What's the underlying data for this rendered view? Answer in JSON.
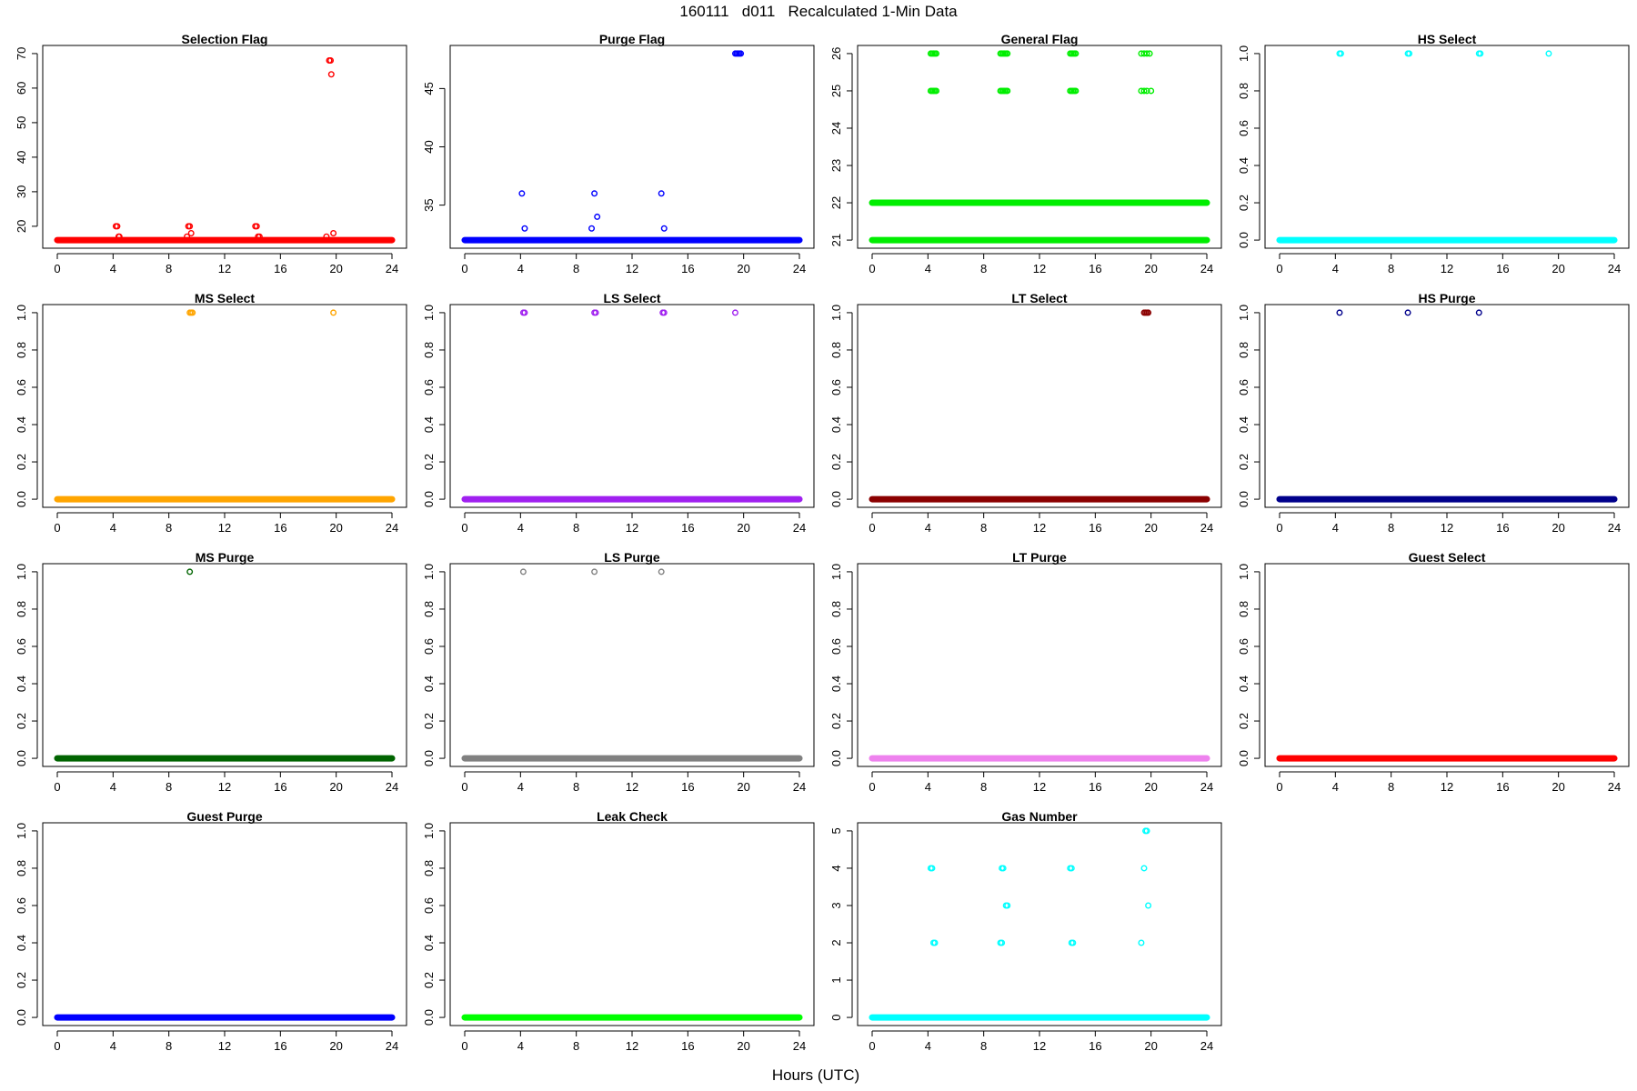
{
  "figure": {
    "title": "160111   d011   Recalculated 1-Min Data",
    "xlabel": "Hours (UTC)"
  },
  "chart_data": [
    {
      "type": "scatter",
      "title": "Selection Flag",
      "color": "#ff0000",
      "xlim": [
        0,
        24
      ],
      "ylim": [
        16,
        70
      ],
      "xticks": [
        0,
        4,
        8,
        12,
        16,
        20,
        24
      ],
      "yticks": [
        20,
        30,
        40,
        50,
        60,
        70
      ],
      "baseline": [
        {
          "y": 16,
          "from": 0,
          "to": 24
        }
      ],
      "points": [
        [
          4.2,
          20
        ],
        [
          4.3,
          20
        ],
        [
          4.4,
          17
        ],
        [
          4.45,
          17
        ],
        [
          9.3,
          17
        ],
        [
          9.4,
          20
        ],
        [
          9.5,
          20
        ],
        [
          9.6,
          18
        ],
        [
          14.2,
          20
        ],
        [
          14.3,
          20
        ],
        [
          14.4,
          17
        ],
        [
          14.5,
          17
        ],
        [
          19.3,
          17
        ],
        [
          19.5,
          68
        ],
        [
          19.6,
          68
        ],
        [
          19.65,
          64
        ],
        [
          19.8,
          18
        ]
      ]
    },
    {
      "type": "scatter",
      "title": "Purge Flag",
      "color": "#0000ff",
      "xlim": [
        0,
        24
      ],
      "ylim": [
        32,
        48
      ],
      "xticks": [
        0,
        4,
        8,
        12,
        16,
        20,
        24
      ],
      "yticks": [
        35,
        40,
        45
      ],
      "baseline": [
        {
          "y": 32,
          "from": 0,
          "to": 24
        }
      ],
      "points": [
        [
          4.1,
          36
        ],
        [
          4.3,
          33
        ],
        [
          9.1,
          33
        ],
        [
          9.3,
          36
        ],
        [
          9.5,
          34
        ],
        [
          14.1,
          36
        ],
        [
          14.3,
          33
        ],
        [
          19.4,
          48
        ],
        [
          19.5,
          48
        ],
        [
          19.6,
          48
        ],
        [
          19.7,
          48
        ],
        [
          19.8,
          48
        ]
      ]
    },
    {
      "type": "scatter",
      "title": "General Flag",
      "color": "#00ee00",
      "xlim": [
        0,
        24
      ],
      "ylim": [
        21,
        26
      ],
      "xticks": [
        0,
        4,
        8,
        12,
        16,
        20,
        24
      ],
      "yticks": [
        21,
        22,
        23,
        24,
        25,
        26
      ],
      "baseline": [
        {
          "y": 21,
          "from": 0,
          "to": 24
        },
        {
          "y": 22,
          "from": 0,
          "to": 24
        }
      ],
      "points": [
        [
          4.2,
          26
        ],
        [
          4.3,
          26
        ],
        [
          4.4,
          26
        ],
        [
          4.5,
          26
        ],
        [
          4.6,
          26
        ],
        [
          4.2,
          25
        ],
        [
          4.3,
          25
        ],
        [
          4.4,
          25
        ],
        [
          4.5,
          25
        ],
        [
          4.6,
          25
        ],
        [
          9.2,
          26
        ],
        [
          9.3,
          26
        ],
        [
          9.4,
          26
        ],
        [
          9.5,
          26
        ],
        [
          9.6,
          26
        ],
        [
          9.7,
          26
        ],
        [
          9.2,
          25
        ],
        [
          9.3,
          25
        ],
        [
          9.4,
          25
        ],
        [
          9.5,
          25
        ],
        [
          9.6,
          25
        ],
        [
          9.7,
          25
        ],
        [
          14.2,
          26
        ],
        [
          14.3,
          26
        ],
        [
          14.4,
          26
        ],
        [
          14.5,
          26
        ],
        [
          14.6,
          26
        ],
        [
          14.2,
          25
        ],
        [
          14.3,
          25
        ],
        [
          14.4,
          25
        ],
        [
          14.5,
          25
        ],
        [
          14.6,
          25
        ],
        [
          19.3,
          26
        ],
        [
          19.5,
          26
        ],
        [
          19.7,
          26
        ],
        [
          19.9,
          26
        ],
        [
          19.3,
          25
        ],
        [
          19.5,
          25
        ],
        [
          19.7,
          25
        ],
        [
          20.0,
          25
        ]
      ]
    },
    {
      "type": "scatter",
      "title": "HS Select",
      "color": "#00ffff",
      "xlim": [
        0,
        24
      ],
      "ylim": [
        0,
        1
      ],
      "xticks": [
        0,
        4,
        8,
        12,
        16,
        20,
        24
      ],
      "yticks": [
        0.0,
        0.2,
        0.4,
        0.6,
        0.8,
        1.0
      ],
      "baseline": [
        {
          "y": 0,
          "from": 0,
          "to": 24
        }
      ],
      "points": [
        [
          4.3,
          1
        ],
        [
          4.4,
          1
        ],
        [
          9.2,
          1
        ],
        [
          9.3,
          1
        ],
        [
          14.3,
          1
        ],
        [
          14.4,
          1
        ],
        [
          19.3,
          1
        ]
      ]
    },
    {
      "type": "scatter",
      "title": "MS Select",
      "color": "#ffa500",
      "xlim": [
        0,
        24
      ],
      "ylim": [
        0,
        1
      ],
      "xticks": [
        0,
        4,
        8,
        12,
        16,
        20,
        24
      ],
      "yticks": [
        0.0,
        0.2,
        0.4,
        0.6,
        0.8,
        1.0
      ],
      "baseline": [
        {
          "y": 0,
          "from": 0,
          "to": 24
        }
      ],
      "points": [
        [
          9.5,
          1
        ],
        [
          9.6,
          1
        ],
        [
          9.7,
          1
        ],
        [
          19.8,
          1
        ]
      ]
    },
    {
      "type": "scatter",
      "title": "LS Select",
      "color": "#a020f0",
      "xlim": [
        0,
        24
      ],
      "ylim": [
        0,
        1
      ],
      "xticks": [
        0,
        4,
        8,
        12,
        16,
        20,
        24
      ],
      "yticks": [
        0.0,
        0.2,
        0.4,
        0.6,
        0.8,
        1.0
      ],
      "baseline": [
        {
          "y": 0,
          "from": 0,
          "to": 24
        }
      ],
      "points": [
        [
          4.2,
          1
        ],
        [
          4.3,
          1
        ],
        [
          9.3,
          1
        ],
        [
          9.4,
          1
        ],
        [
          14.2,
          1
        ],
        [
          14.3,
          1
        ],
        [
          19.4,
          1
        ]
      ]
    },
    {
      "type": "scatter",
      "title": "LT Select",
      "color": "#8b0000",
      "xlim": [
        0,
        24
      ],
      "ylim": [
        0,
        1
      ],
      "xticks": [
        0,
        4,
        8,
        12,
        16,
        20,
        24
      ],
      "yticks": [
        0.0,
        0.2,
        0.4,
        0.6,
        0.8,
        1.0
      ],
      "baseline": [
        {
          "y": 0,
          "from": 0,
          "to": 24
        }
      ],
      "points": [
        [
          19.5,
          1
        ],
        [
          19.6,
          1
        ],
        [
          19.7,
          1
        ],
        [
          19.8,
          1
        ]
      ]
    },
    {
      "type": "scatter",
      "title": "HS Purge",
      "color": "#00008b",
      "xlim": [
        0,
        24
      ],
      "ylim": [
        0,
        1
      ],
      "xticks": [
        0,
        4,
        8,
        12,
        16,
        20,
        24
      ],
      "yticks": [
        0.0,
        0.2,
        0.4,
        0.6,
        0.8,
        1.0
      ],
      "baseline": [
        {
          "y": 0,
          "from": 0,
          "to": 24
        }
      ],
      "points": [
        [
          4.3,
          1
        ],
        [
          9.2,
          1
        ],
        [
          14.3,
          1
        ]
      ]
    },
    {
      "type": "scatter",
      "title": "MS Purge",
      "color": "#006400",
      "xlim": [
        0,
        24
      ],
      "ylim": [
        0,
        1
      ],
      "xticks": [
        0,
        4,
        8,
        12,
        16,
        20,
        24
      ],
      "yticks": [
        0.0,
        0.2,
        0.4,
        0.6,
        0.8,
        1.0
      ],
      "baseline": [
        {
          "y": 0,
          "from": 0,
          "to": 24
        }
      ],
      "points": [
        [
          9.5,
          1
        ]
      ]
    },
    {
      "type": "scatter",
      "title": "LS Purge",
      "color": "#808080",
      "xlim": [
        0,
        24
      ],
      "ylim": [
        0,
        1
      ],
      "xticks": [
        0,
        4,
        8,
        12,
        16,
        20,
        24
      ],
      "yticks": [
        0.0,
        0.2,
        0.4,
        0.6,
        0.8,
        1.0
      ],
      "baseline": [
        {
          "y": 0,
          "from": 0,
          "to": 24
        }
      ],
      "points": [
        [
          4.2,
          1
        ],
        [
          9.3,
          1
        ],
        [
          14.1,
          1
        ]
      ]
    },
    {
      "type": "scatter",
      "title": "LT Purge",
      "color": "#ee82ee",
      "xlim": [
        0,
        24
      ],
      "ylim": [
        0,
        1
      ],
      "xticks": [
        0,
        4,
        8,
        12,
        16,
        20,
        24
      ],
      "yticks": [
        0.0,
        0.2,
        0.4,
        0.6,
        0.8,
        1.0
      ],
      "baseline": [
        {
          "y": 0,
          "from": 0,
          "to": 24
        }
      ],
      "points": []
    },
    {
      "type": "scatter",
      "title": "Guest Select",
      "color": "#ff0000",
      "xlim": [
        0,
        24
      ],
      "ylim": [
        0,
        1
      ],
      "xticks": [
        0,
        4,
        8,
        12,
        16,
        20,
        24
      ],
      "yticks": [
        0.0,
        0.2,
        0.4,
        0.6,
        0.8,
        1.0
      ],
      "baseline": [
        {
          "y": 0,
          "from": 0,
          "to": 24
        }
      ],
      "points": []
    },
    {
      "type": "scatter",
      "title": "Guest Purge",
      "color": "#0000ff",
      "xlim": [
        0,
        24
      ],
      "ylim": [
        0,
        1
      ],
      "xticks": [
        0,
        4,
        8,
        12,
        16,
        20,
        24
      ],
      "yticks": [
        0.0,
        0.2,
        0.4,
        0.6,
        0.8,
        1.0
      ],
      "baseline": [
        {
          "y": 0,
          "from": 0,
          "to": 24
        }
      ],
      "points": []
    },
    {
      "type": "scatter",
      "title": "Leak Check",
      "color": "#00ff00",
      "xlim": [
        0,
        24
      ],
      "ylim": [
        0,
        1
      ],
      "xticks": [
        0,
        4,
        8,
        12,
        16,
        20,
        24
      ],
      "yticks": [
        0.0,
        0.2,
        0.4,
        0.6,
        0.8,
        1.0
      ],
      "baseline": [
        {
          "y": 0,
          "from": 0,
          "to": 24
        }
      ],
      "points": []
    },
    {
      "type": "scatter",
      "title": "Gas Number",
      "color": "#00ffff",
      "xlim": [
        0,
        24
      ],
      "ylim": [
        0,
        5
      ],
      "xticks": [
        0,
        4,
        8,
        12,
        16,
        20,
        24
      ],
      "yticks": [
        0,
        1,
        2,
        3,
        4,
        5
      ],
      "baseline": [
        {
          "y": 0,
          "from": 0,
          "to": 24
        }
      ],
      "points": [
        [
          4.2,
          4
        ],
        [
          4.3,
          4
        ],
        [
          4.4,
          2
        ],
        [
          4.5,
          2
        ],
        [
          9.2,
          2
        ],
        [
          9.3,
          2
        ],
        [
          9.3,
          4
        ],
        [
          9.4,
          4
        ],
        [
          9.6,
          3
        ],
        [
          9.7,
          3
        ],
        [
          14.2,
          4
        ],
        [
          14.3,
          4
        ],
        [
          14.3,
          2
        ],
        [
          14.4,
          2
        ],
        [
          19.3,
          2
        ],
        [
          19.5,
          4
        ],
        [
          19.6,
          5
        ],
        [
          19.7,
          5
        ],
        [
          19.8,
          3
        ]
      ]
    }
  ]
}
